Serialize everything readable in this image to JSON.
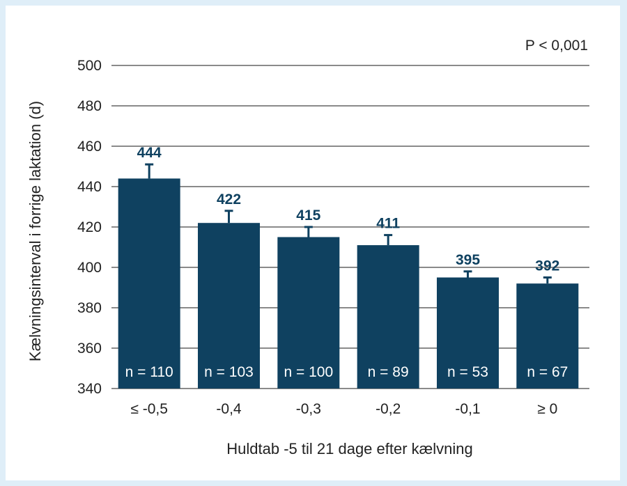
{
  "chart_data": {
    "type": "bar",
    "categories": [
      "≤ -0,5",
      "-0,4",
      "-0,3",
      "-0,2",
      "-0,1",
      "≥ 0"
    ],
    "values": [
      444,
      422,
      415,
      411,
      395,
      392
    ],
    "value_labels": [
      "444",
      "422",
      "415",
      "411",
      "395",
      "392"
    ],
    "error_plus": [
      7,
      6,
      5,
      5,
      3,
      3
    ],
    "n_labels": [
      "n = 110",
      "n = 103",
      "n = 100",
      "n = 89",
      "n = 53",
      "n = 67"
    ],
    "xlabel": "Huldtab -5 til 21 dage efter kælvning",
    "ylabel": "Kælvningsinterval i forrige laktation (d)",
    "ylim": [
      340,
      500
    ],
    "yticks": [
      340,
      360,
      380,
      400,
      420,
      440,
      460,
      480,
      500
    ],
    "annotation": "P < 0,001",
    "grid": true,
    "colors": {
      "bar": "#0f4160",
      "value_label": "#0f4160",
      "grid": "#8a8a8a",
      "frame_background": "#dfeef8"
    }
  }
}
